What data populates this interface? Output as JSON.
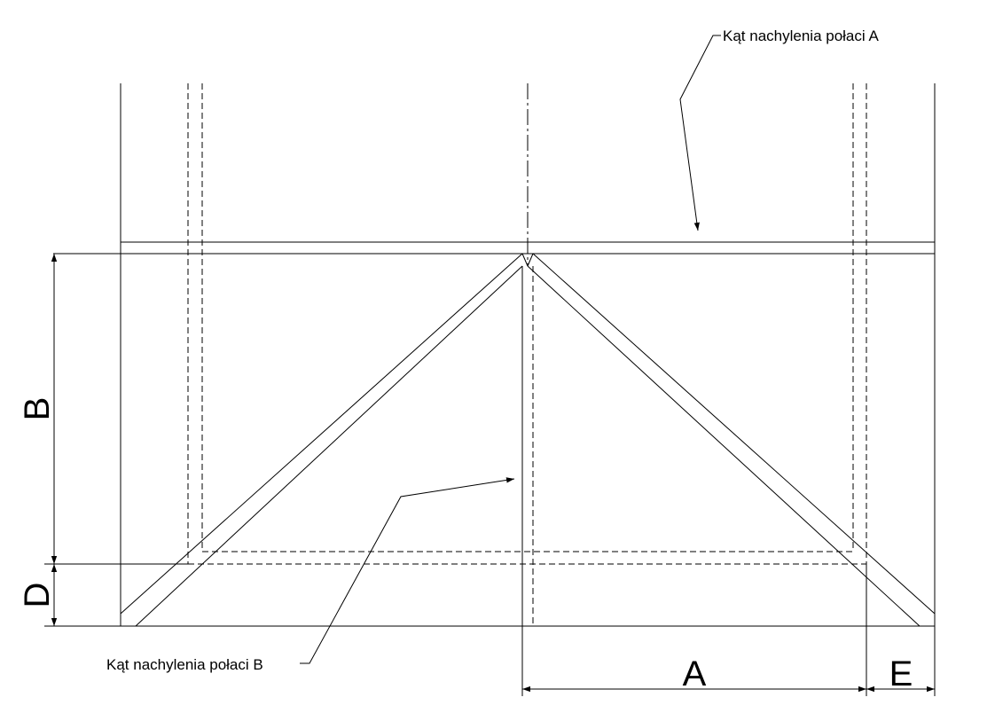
{
  "callouts": {
    "roof_slope_a": "Kąt nachylenia połaci A",
    "roof_slope_b": "Kąt nachylenia połaci B"
  },
  "dimensions": {
    "b": "B",
    "d": "D",
    "a": "A",
    "e": "E"
  }
}
